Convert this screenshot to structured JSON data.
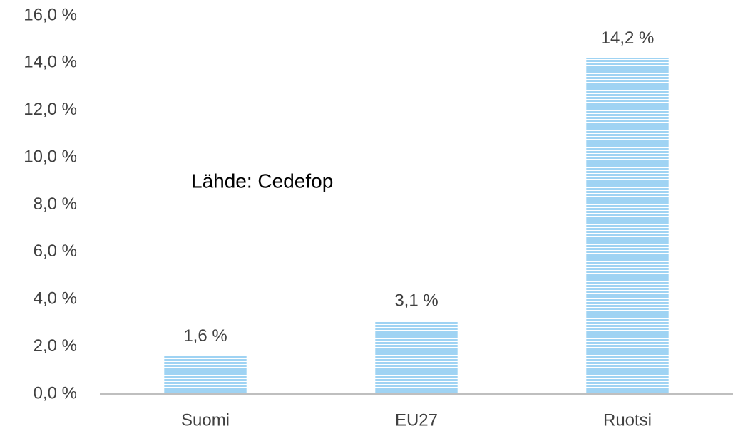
{
  "chart_data": {
    "type": "bar",
    "categories": [
      "Suomi",
      "EU27",
      "Ruotsi"
    ],
    "values": [
      1.6,
      3.1,
      14.2
    ],
    "value_labels": [
      "1,6 %",
      "3,1 %",
      "14,2 %"
    ],
    "color": "#9fd3f3",
    "annotation": "Lähde: Cedefop",
    "ylim": [
      0,
      16
    ],
    "yticks": [
      {
        "value": 0,
        "label": "0,0 %"
      },
      {
        "value": 2,
        "label": "2,0 %"
      },
      {
        "value": 4,
        "label": "4,0 %"
      },
      {
        "value": 6,
        "label": "6,0 %"
      },
      {
        "value": 8,
        "label": "8,0 %"
      },
      {
        "value": 10,
        "label": "10,0 %"
      },
      {
        "value": 12,
        "label": "12,0 %"
      },
      {
        "value": 14,
        "label": "14,0 %"
      },
      {
        "value": 16,
        "label": "16,0 %"
      }
    ],
    "grid": false
  }
}
